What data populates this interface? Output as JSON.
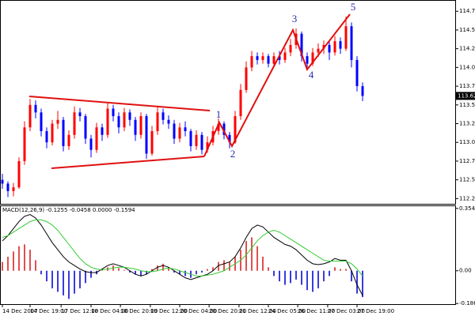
{
  "chart_data": [
    {
      "type": "candlestick",
      "color_up": "#ff0000",
      "color_down": "#0000ff",
      "open": [
        112.5,
        112.45,
        112.35,
        112.4,
        112.75,
        113.2,
        113.5,
        113.4,
        113.15,
        113.0,
        113.25,
        113.3,
        112.95,
        113.1,
        113.4,
        113.35,
        113.05,
        112.9,
        113.2,
        113.1,
        113.45,
        113.35,
        113.2,
        113.4,
        113.3,
        113.1,
        113.35,
        112.85,
        113.15,
        113.4,
        113.3,
        113.25,
        113.05,
        113.2,
        113.15,
        112.95,
        113.1,
        112.9,
        113.0,
        113.15,
        113.25,
        113.1,
        113.0,
        113.35,
        113.7,
        114.0,
        114.15,
        114.1,
        114.15,
        114.05,
        114.15,
        114.1,
        114.2,
        114.3,
        114.45,
        114.15,
        114.05,
        114.2,
        114.25,
        114.3,
        114.2,
        114.35,
        114.25,
        114.55,
        114.1,
        113.75
      ],
      "high": [
        112.58,
        112.48,
        112.46,
        112.8,
        113.28,
        113.58,
        113.56,
        113.45,
        113.2,
        113.3,
        113.42,
        113.34,
        113.16,
        113.48,
        113.46,
        113.38,
        113.1,
        113.26,
        113.25,
        113.52,
        113.5,
        113.4,
        113.46,
        113.44,
        113.34,
        113.4,
        113.38,
        113.22,
        113.48,
        113.45,
        113.36,
        113.3,
        113.26,
        113.28,
        113.18,
        113.16,
        113.14,
        113.08,
        113.22,
        113.32,
        113.28,
        113.14,
        113.42,
        113.78,
        114.08,
        114.22,
        114.2,
        114.2,
        114.18,
        114.2,
        114.22,
        114.26,
        114.38,
        114.52,
        114.48,
        114.2,
        114.26,
        114.32,
        114.36,
        114.34,
        114.42,
        114.4,
        114.68,
        114.6,
        114.15,
        113.8
      ],
      "low": [
        112.38,
        112.27,
        112.28,
        112.38,
        112.7,
        113.15,
        113.32,
        113.08,
        112.92,
        112.96,
        113.18,
        112.88,
        112.9,
        113.05,
        113.28,
        112.98,
        112.8,
        112.86,
        113.02,
        113.06,
        113.28,
        113.12,
        113.15,
        113.22,
        113.02,
        113.05,
        112.78,
        112.82,
        113.1,
        113.24,
        113.18,
        112.98,
        113.0,
        113.08,
        112.88,
        112.9,
        112.84,
        112.86,
        112.96,
        113.1,
        113.04,
        112.92,
        112.98,
        113.3,
        113.66,
        113.95,
        114.04,
        114.05,
        114.0,
        114.02,
        114.04,
        114.06,
        114.15,
        114.25,
        114.08,
        113.98,
        114.02,
        114.14,
        114.18,
        114.1,
        114.16,
        114.18,
        114.22,
        114.0,
        113.68,
        113.55
      ],
      "close": [
        112.45,
        112.35,
        112.4,
        112.75,
        113.2,
        113.5,
        113.4,
        113.15,
        113.0,
        113.25,
        113.3,
        112.95,
        113.1,
        113.4,
        113.35,
        113.05,
        112.9,
        113.2,
        113.1,
        113.45,
        113.35,
        113.2,
        113.4,
        113.3,
        113.1,
        113.35,
        112.85,
        113.15,
        113.4,
        113.3,
        113.25,
        113.05,
        113.2,
        113.15,
        112.95,
        113.1,
        112.9,
        113.0,
        113.15,
        113.25,
        113.1,
        113.0,
        113.35,
        113.7,
        114.0,
        114.15,
        114.1,
        114.15,
        114.05,
        114.15,
        114.1,
        114.2,
        114.3,
        114.45,
        114.15,
        114.05,
        114.2,
        114.25,
        114.3,
        114.2,
        114.35,
        114.25,
        114.55,
        114.1,
        113.75,
        113.62
      ],
      "last_price": 113.62,
      "ylim": [
        112.18,
        114.9
      ],
      "yticks": [
        114.75,
        {
          "value": 114.5,
          "label": "114.50"
        },
        114.25,
        {
          "value": 114,
          "label": "114.00"
        },
        113.75,
        {
          "value": 113.5,
          "label": "113.50"
        },
        113.25,
        {
          "value": 113,
          "label": "113.00"
        },
        112.75,
        {
          "value": 112.5,
          "label": "112.50"
        },
        112.25
      ],
      "wave_labels": [
        "1",
        "2",
        "3",
        "4",
        "5"
      ]
    },
    {
      "type": "macd",
      "title": "MACD(12,26,9) -0.1255 -0.0458 0.0000 -0.1594",
      "histogram": {
        "color_up": "#e05050",
        "color_down": "#3b3bdd",
        "values": [
          0.05,
          0.08,
          0.11,
          0.14,
          0.15,
          0.12,
          0.06,
          -0.02,
          -0.06,
          -0.1,
          -0.12,
          -0.14,
          -0.16,
          -0.13,
          -0.1,
          -0.07,
          -0.04,
          -0.02,
          0.01,
          0.02,
          0.03,
          0.015,
          0.005,
          -0.01,
          -0.02,
          -0.03,
          -0.02,
          0.01,
          0.03,
          0.04,
          0.02,
          -0.01,
          -0.02,
          -0.03,
          -0.04,
          -0.02,
          -0.01,
          0.01,
          0.02,
          0.05,
          0.06,
          0.05,
          0.08,
          0.12,
          0.17,
          0.19,
          0.14,
          0.08,
          0.02,
          -0.03,
          -0.06,
          -0.08,
          -0.07,
          -0.05,
          -0.08,
          -0.11,
          -0.12,
          -0.1,
          -0.06,
          -0.03,
          0.02,
          0.01,
          0.01,
          -0.06,
          -0.13,
          -0.15
        ]
      },
      "series": [
        {
          "color": "#000000",
          "values": [
            0.17,
            0.2,
            0.24,
            0.28,
            0.31,
            0.32,
            0.3,
            0.26,
            0.21,
            0.16,
            0.12,
            0.08,
            0.05,
            0.03,
            0.01,
            -0.005,
            -0.01,
            -0.01,
            0.01,
            0.03,
            0.04,
            0.03,
            0.02,
            0.0,
            -0.02,
            -0.03,
            -0.02,
            0.0,
            0.02,
            0.03,
            0.02,
            0.0,
            -0.02,
            -0.04,
            -0.05,
            -0.04,
            -0.03,
            -0.02,
            0.0,
            0.03,
            0.04,
            0.05,
            0.08,
            0.13,
            0.19,
            0.24,
            0.26,
            0.25,
            0.22,
            0.19,
            0.17,
            0.15,
            0.14,
            0.12,
            0.09,
            0.06,
            0.04,
            0.035,
            0.04,
            0.05,
            0.07,
            0.06,
            0.06,
            0.0,
            -0.08,
            -0.14
          ]
        },
        {
          "color": "#33cc33",
          "values": [
            0.19,
            0.2,
            0.22,
            0.24,
            0.26,
            0.28,
            0.29,
            0.29,
            0.28,
            0.26,
            0.23,
            0.19,
            0.15,
            0.11,
            0.07,
            0.04,
            0.02,
            0.01,
            0.005,
            0.01,
            0.015,
            0.02,
            0.02,
            0.015,
            0.01,
            0.0,
            -0.005,
            -0.005,
            0.0,
            0.01,
            0.015,
            0.01,
            0.0,
            -0.01,
            -0.02,
            -0.03,
            -0.03,
            -0.025,
            -0.02,
            -0.01,
            0.0,
            0.02,
            0.04,
            0.06,
            0.09,
            0.13,
            0.17,
            0.2,
            0.22,
            0.23,
            0.22,
            0.2,
            0.18,
            0.16,
            0.14,
            0.12,
            0.1,
            0.08,
            0.06,
            0.055,
            0.055,
            0.055,
            0.055,
            0.04,
            0.01,
            -0.03
          ]
        }
      ],
      "ylim": [
        -0.19,
        0.372
      ],
      "yticks": [
        0.3545,
        {
          "value": 0,
          "label": "0.00"
        },
        -0.1865
      ],
      "xticks": [
        {
          "value": 0,
          "label": "14 Dec 2007"
        },
        {
          "value": 5,
          "label": "14 Dec 19:00"
        },
        {
          "value": 10.6,
          "label": "17 Dec 12:00"
        },
        {
          "value": 16,
          "label": "18 Dec 04:00"
        },
        {
          "value": 21.3,
          "label": "18 Dec 20:00"
        },
        {
          "value": 26.7,
          "label": "19 Dec 12:00"
        },
        {
          "value": 32,
          "label": "20 Dec 04:00"
        },
        {
          "value": 37.3,
          "label": "20 Dec 20:00"
        },
        {
          "value": 42.7,
          "label": "21 Dec 12:00"
        },
        {
          "value": 48,
          "label": "24 Dec 05:00"
        },
        {
          "value": 53.3,
          "label": "26 Dec 11:00"
        },
        {
          "value": 58.7,
          "label": "27 Dec 03:00"
        },
        {
          "value": 64,
          "label": "27 Dec 19:00"
        }
      ]
    }
  ]
}
